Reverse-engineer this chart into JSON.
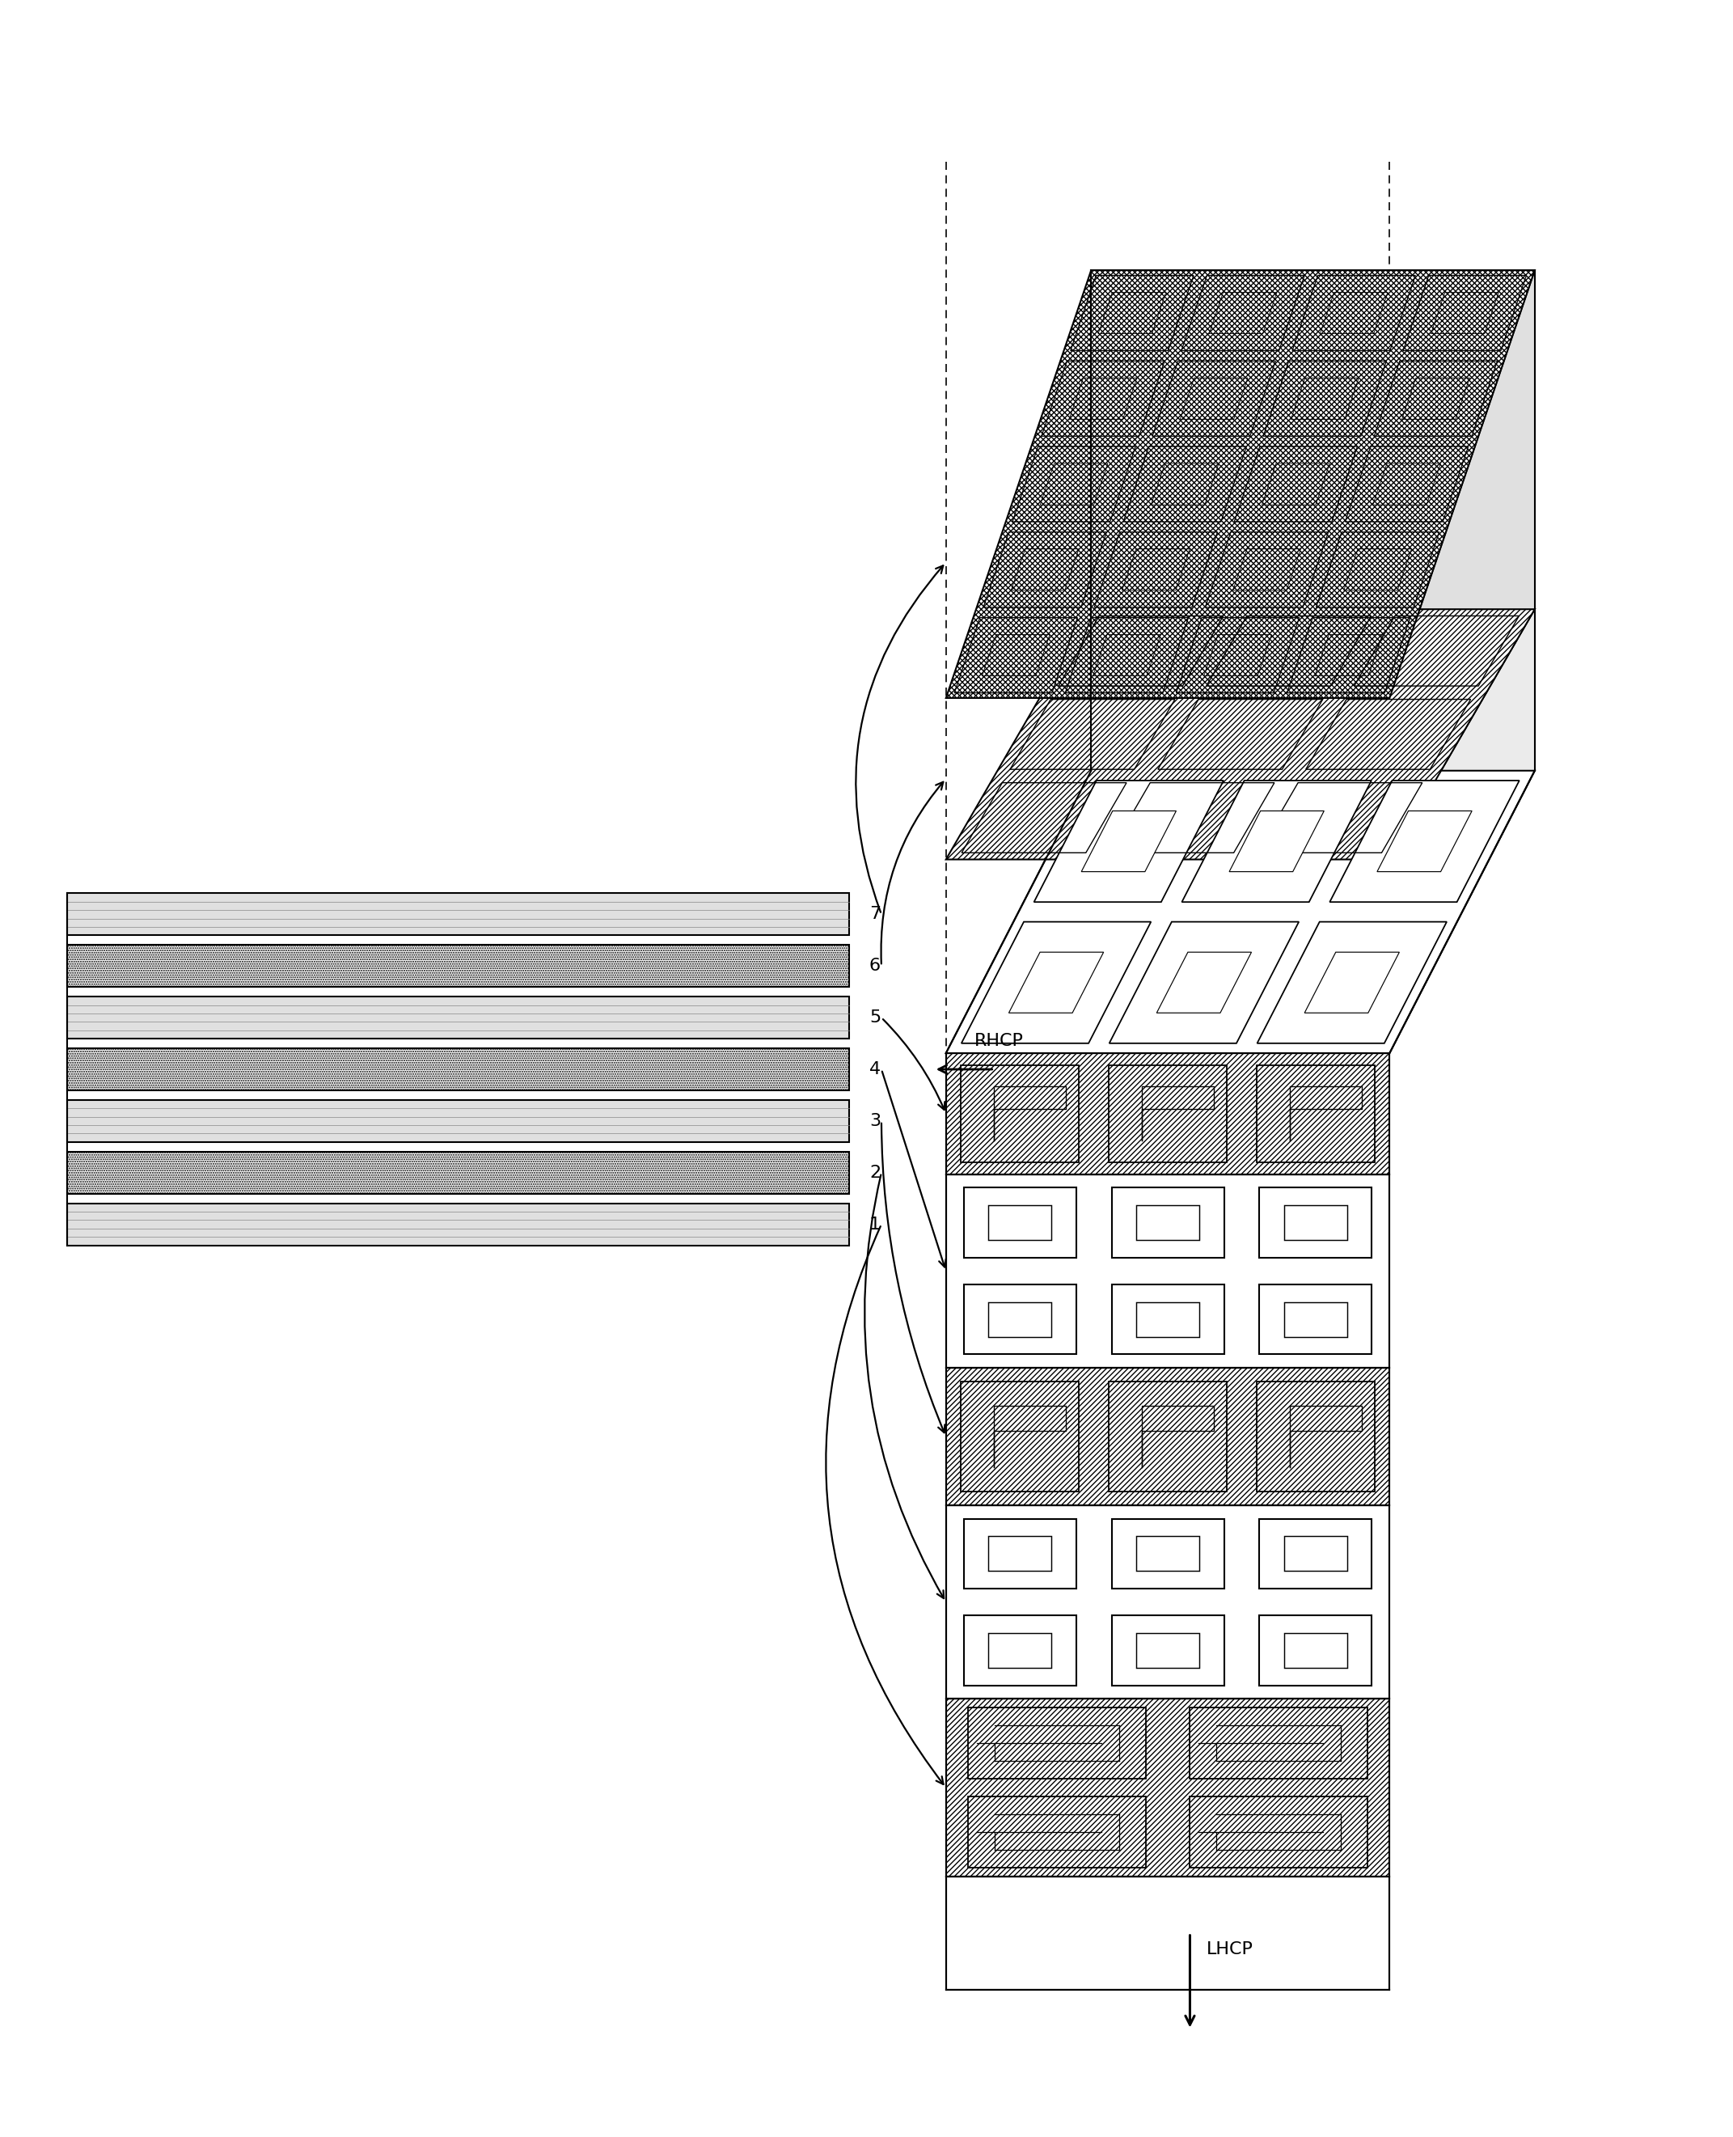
{
  "fig_width": 21.43,
  "fig_height": 26.42,
  "bg_color": "#ffffff",
  "line_color": "#000000",
  "layer_labels": [
    "1",
    "2",
    "3",
    "4",
    "5",
    "6",
    "7"
  ],
  "rhcp_label": "RHCP",
  "lhcp_label": "LHCP"
}
